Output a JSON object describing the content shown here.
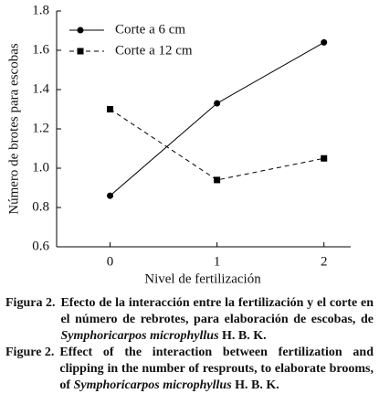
{
  "chart_data": {
    "type": "line",
    "xlabel": "Nivel de fertilización",
    "ylabel": "Número de brotes para escobas",
    "x": [
      0,
      1,
      2
    ],
    "series": [
      {
        "name": "Corte a 6 cm",
        "color": "#000000",
        "marker": "circle",
        "linestyle": "solid",
        "values": [
          0.86,
          1.33,
          1.64
        ]
      },
      {
        "name": "Corte a 12 cm",
        "color": "#000000",
        "marker": "square",
        "linestyle": "dashed",
        "values": [
          1.3,
          0.94,
          1.05
        ]
      }
    ],
    "xlim": [
      -0.5,
      2.25
    ],
    "xticks": [
      0,
      1,
      2
    ],
    "ylim": [
      0.6,
      1.8
    ],
    "yticks": [
      0.6,
      0.8,
      {
        "value": 1,
        "label": "1.0"
      },
      1.2,
      1.4,
      1.6,
      1.8
    ],
    "legend": "upper left"
  },
  "caption": {
    "es": {
      "label": "Figura 2.",
      "text": "Efecto de la interacción entre la fertilización y el corte en el número de rebrotes, para elaboración de escobas, de",
      "species": "Symphoricarpos microphyllus",
      "authority": "H. B. K."
    },
    "en": {
      "label": "Figure 2.",
      "text": "Effect of the interaction between fertilization and clipping in the number of resprouts, to elaborate brooms, of",
      "species": "Symphoricarpos microphyllus",
      "authority": "H. B. K."
    }
  }
}
